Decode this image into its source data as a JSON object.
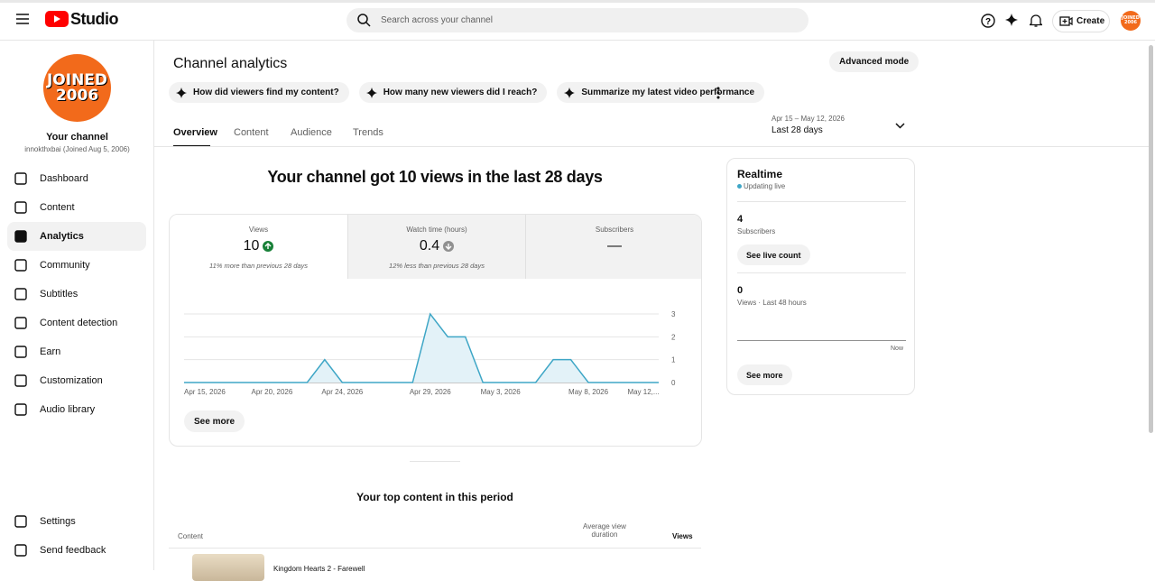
{
  "header": {
    "logo": "Studio",
    "search_placeholder": "Search across your channel",
    "create": "Create",
    "avatar": [
      "JOINED",
      "2006"
    ]
  },
  "sidebar": {
    "avatar": [
      "JOINED",
      "2006"
    ],
    "channel_title": "Your channel",
    "channel_subtitle": "innokthxbai (Joined Aug 5, 2006)",
    "nav": [
      "Dashboard",
      "Content",
      "Analytics",
      "Community",
      "Subtitles",
      "Content detection",
      "Earn",
      "Customization",
      "Audio library"
    ],
    "footer": [
      "Settings",
      "Send feedback"
    ]
  },
  "page": {
    "title": "Channel analytics",
    "advanced_mode": "Advanced mode",
    "prompts": [
      "How did viewers find my content?",
      "How many new viewers did I reach?",
      "Summarize my latest video performance"
    ],
    "tabs": [
      "Overview",
      "Content",
      "Audience",
      "Trends"
    ],
    "date_range": "Apr 15 – May 12, 2026",
    "period": "Last 28 days",
    "headline": "Your channel got 10 views in the last 28 days",
    "see_more": "See more"
  },
  "metrics": [
    {
      "label": "Views",
      "value": 10,
      "note": "11% more than previous 28 days"
    },
    {
      "label": "Watch time (hours)",
      "value": 0.4,
      "note": "12% less than previous 28 days"
    },
    {
      "label": "Subscribers",
      "value": "—"
    }
  ],
  "chart_data": {
    "type": "area",
    "color": "#3ea6c6",
    "fill": "#e3f2f8",
    "grid": true,
    "categories": [
      "Apr 15, 2026",
      null,
      null,
      null,
      null,
      "Apr 20, 2026",
      null,
      null,
      null,
      "Apr 24, 2026",
      null,
      null,
      null,
      null,
      "Apr 29, 2026",
      null,
      null,
      null,
      "May 3, 2026",
      null,
      null,
      null,
      null,
      "May 8, 2026",
      null,
      null,
      null,
      "May 12,..."
    ],
    "values": [
      0,
      0,
      0,
      0,
      0,
      0,
      0,
      0,
      1,
      0,
      0,
      0,
      0,
      0,
      3,
      2,
      2,
      0,
      0,
      0,
      0,
      1,
      1,
      0,
      0,
      0,
      0,
      0
    ],
    "ylim": [
      0,
      3
    ],
    "yticks": [
      0,
      1,
      2,
      3
    ]
  },
  "realtime": {
    "title": "Realtime",
    "status": "Updating live",
    "subscribers": 4,
    "subscribers_label": "Subscribers",
    "live_count": "See live count",
    "views": 0,
    "views_label": "Views · Last 48 hours",
    "now": "Now",
    "see_more": "See more"
  },
  "top_content": {
    "title": "Your top content in this period",
    "columns": [
      "Content",
      "Average view duration",
      "Views"
    ],
    "rows": [
      {
        "title": "Kingdom Hearts 2 - Farewell"
      }
    ]
  }
}
